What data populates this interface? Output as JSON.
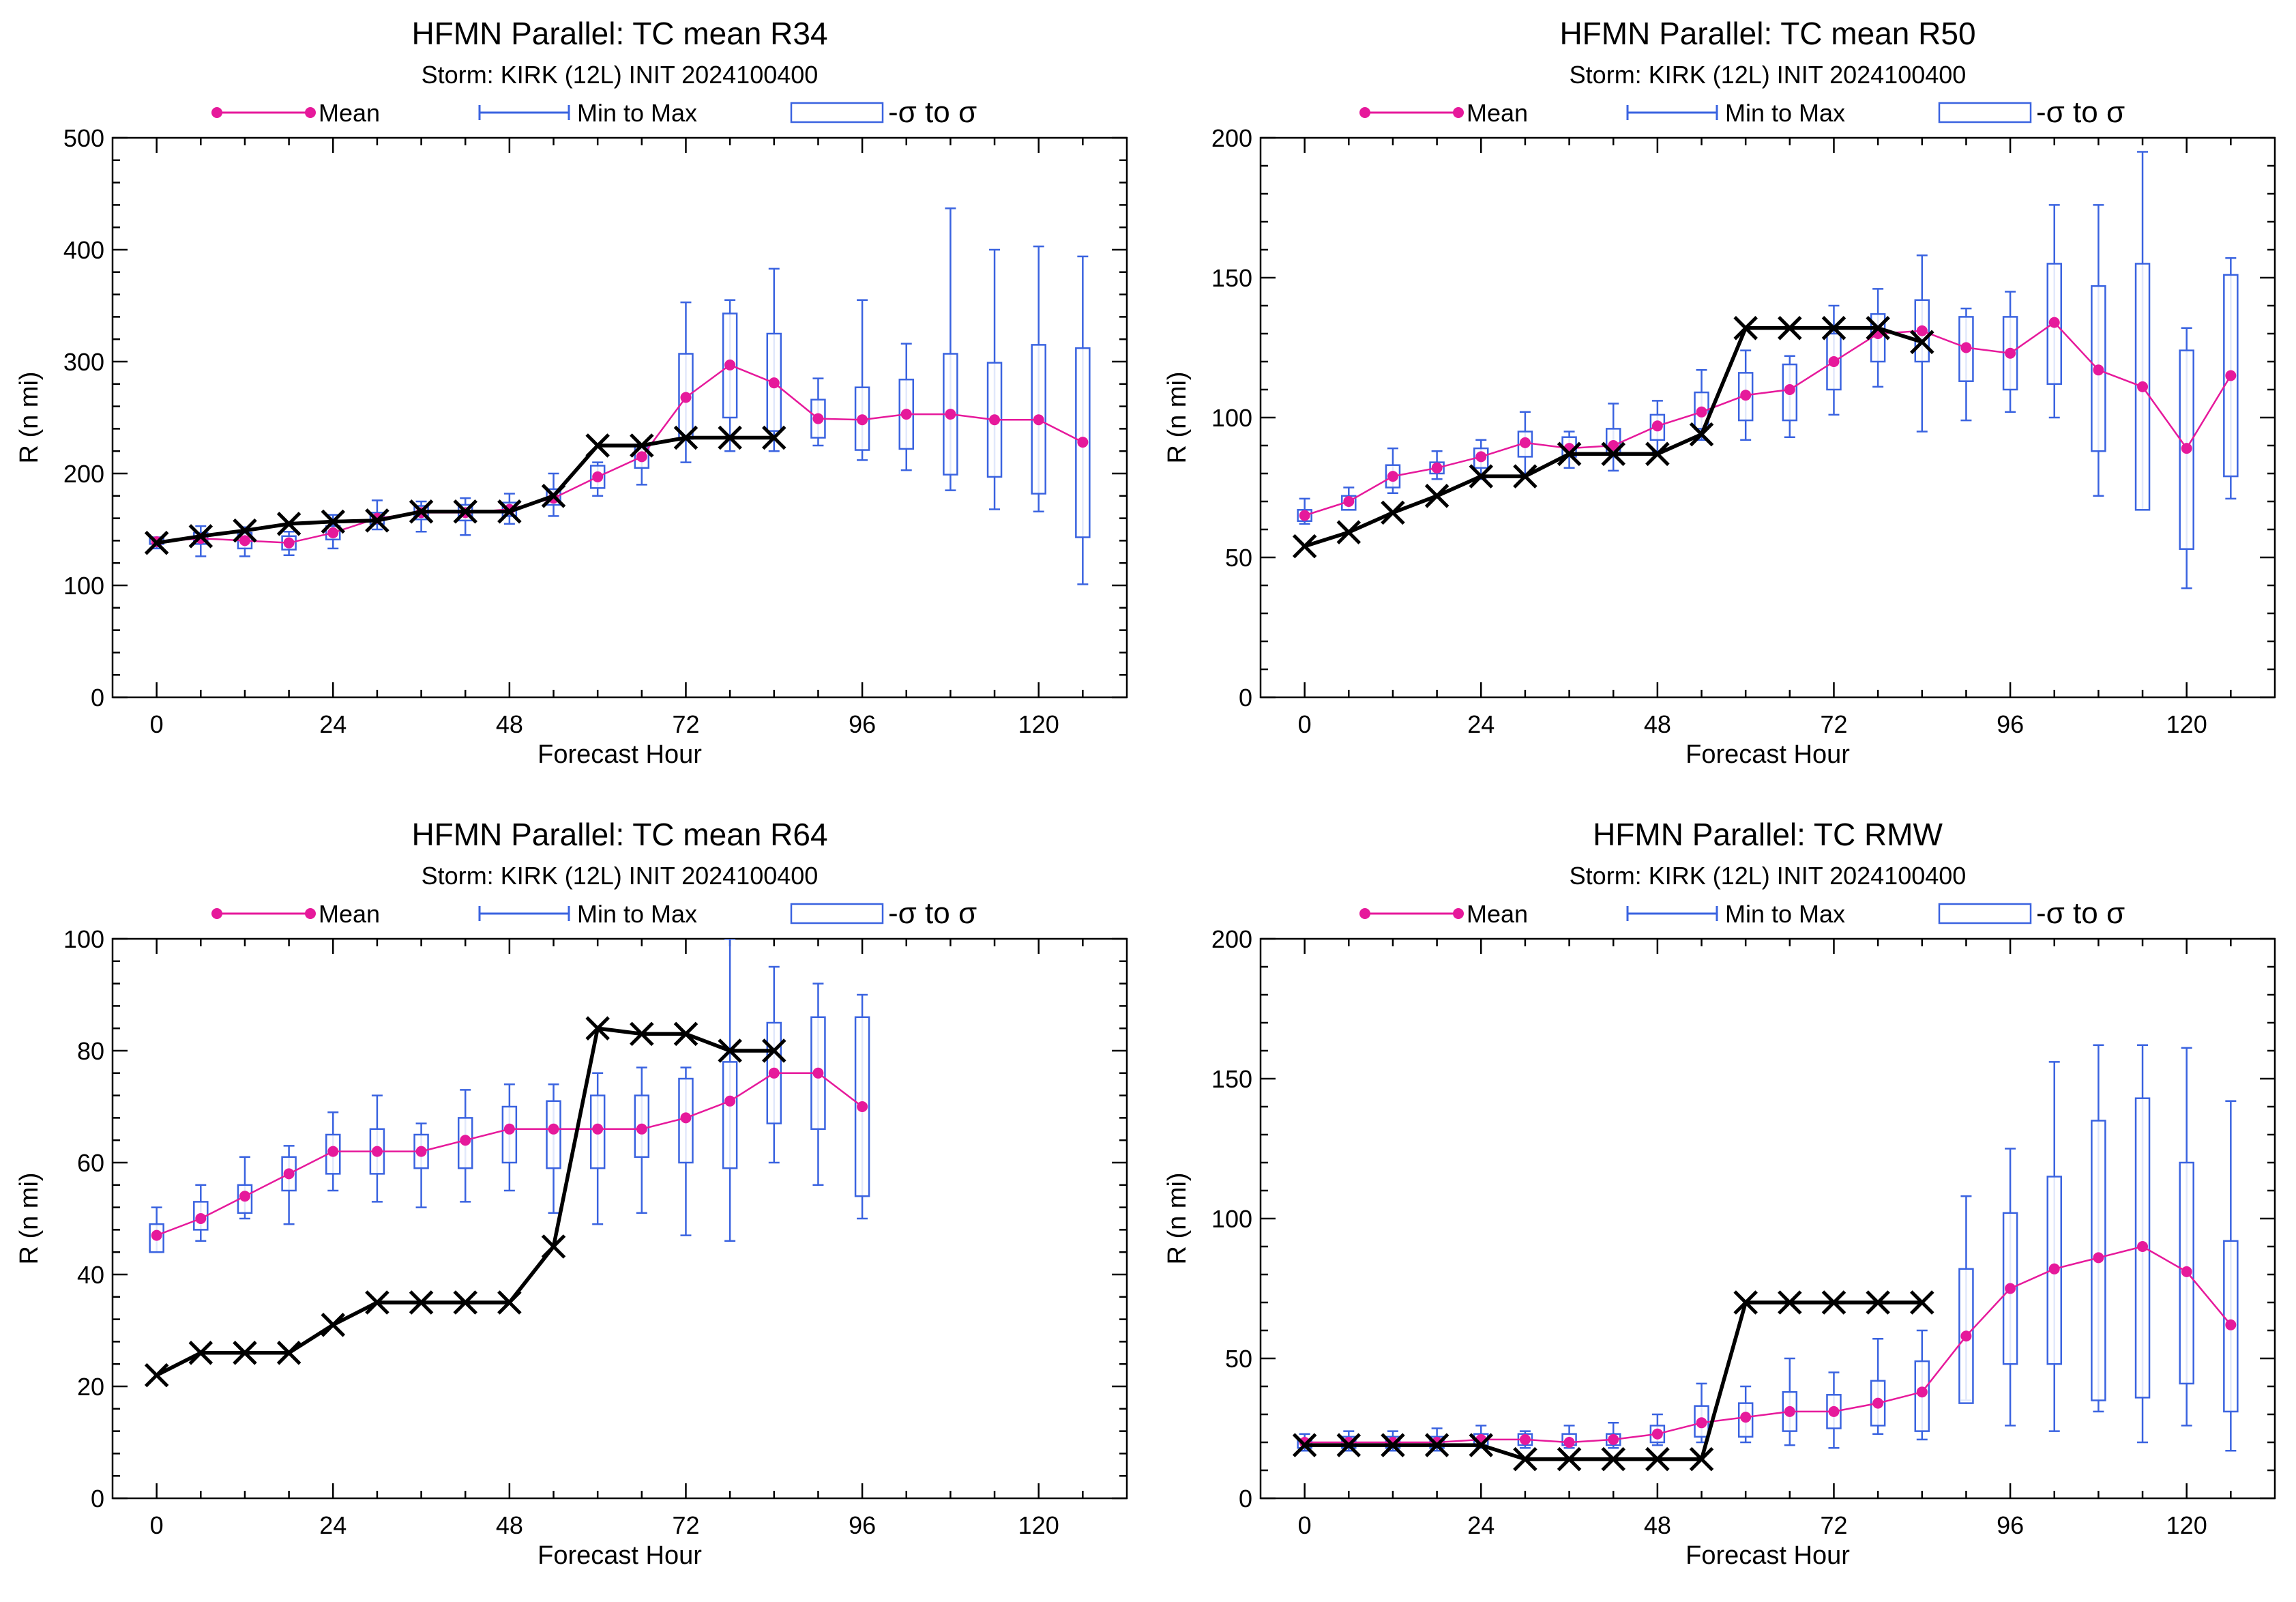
{
  "chart_data": [
    {
      "type": "line",
      "title": "HFMN Parallel: TC mean R34",
      "subtitle": "Storm: KIRK (12L) INIT 2024100400",
      "xlabel": "Forecast Hour",
      "ylabel": "R (n mi)",
      "xlim": [
        -6,
        132
      ],
      "ylim": [
        0,
        500
      ],
      "xticks": [
        0,
        24,
        48,
        72,
        96,
        120
      ],
      "yticks": [
        0,
        100,
        200,
        300,
        400,
        500
      ],
      "legend": [
        "Mean",
        "Min to Max",
        "-σ to σ"
      ],
      "legend_position": "top",
      "colors": {
        "mean": "#e6199b",
        "box": "#3a63e0",
        "observed": "#000000"
      },
      "series": [
        {
          "name": "Mean",
          "x": [
            0,
            6,
            12,
            18,
            24,
            30,
            36,
            42,
            48,
            54,
            60,
            66,
            72,
            78,
            84,
            90,
            96,
            102,
            108,
            114,
            120,
            126
          ],
          "values": [
            139,
            142,
            140,
            138,
            147,
            160,
            165,
            165,
            168,
            178,
            197,
            215,
            268,
            297,
            281,
            249,
            248,
            253,
            253,
            248,
            248,
            228
          ]
        },
        {
          "name": "Min to Max",
          "x": [
            0,
            6,
            12,
            18,
            24,
            30,
            36,
            42,
            48,
            54,
            60,
            66,
            72,
            78,
            84,
            90,
            96,
            102,
            108,
            114,
            120,
            126
          ],
          "min": [
            133,
            126,
            126,
            127,
            133,
            150,
            148,
            145,
            155,
            162,
            180,
            190,
            210,
            220,
            220,
            225,
            212,
            203,
            185,
            168,
            166,
            101
          ],
          "max": [
            143,
            153,
            152,
            148,
            163,
            176,
            175,
            178,
            182,
            200,
            210,
            225,
            353,
            355,
            383,
            285,
            355,
            316,
            437,
            400,
            403,
            394
          ]
        },
        {
          "name": "-σ to σ",
          "x": [
            0,
            6,
            12,
            18,
            24,
            30,
            36,
            42,
            48,
            54,
            60,
            66,
            72,
            78,
            84,
            90,
            96,
            102,
            108,
            114,
            120,
            126
          ],
          "low": [
            137,
            137,
            133,
            132,
            141,
            155,
            159,
            158,
            162,
            172,
            187,
            205,
            231,
            250,
            238,
            232,
            221,
            222,
            199,
            197,
            182,
            143
          ],
          "high": [
            142,
            147,
            147,
            144,
            153,
            165,
            171,
            172,
            174,
            186,
            207,
            224,
            307,
            343,
            325,
            266,
            277,
            284,
            307,
            299,
            315,
            312
          ]
        },
        {
          "x": [
            0,
            6,
            12,
            18,
            24,
            30,
            36,
            42,
            48,
            54,
            60,
            66,
            72,
            78,
            84
          ],
          "values": [
            138,
            144,
            149,
            155,
            157,
            158,
            166,
            166,
            166,
            180,
            225,
            225,
            232,
            232,
            232
          ]
        }
      ]
    },
    {
      "type": "line",
      "title": "HFMN Parallel: TC mean R50",
      "subtitle": "Storm: KIRK (12L) INIT 2024100400",
      "xlabel": "Forecast Hour",
      "ylabel": "R (n mi)",
      "xlim": [
        -6,
        132
      ],
      "ylim": [
        0,
        200
      ],
      "xticks": [
        0,
        24,
        48,
        72,
        96,
        120
      ],
      "yticks": [
        0,
        50,
        100,
        150,
        200
      ],
      "legend": [
        "Mean",
        "Min to Max",
        "-σ to σ"
      ],
      "legend_position": "top",
      "colors": {
        "mean": "#e6199b",
        "box": "#3a63e0",
        "observed": "#000000"
      },
      "series": [
        {
          "name": "Mean",
          "x": [
            0,
            6,
            12,
            18,
            24,
            30,
            36,
            42,
            48,
            54,
            60,
            66,
            72,
            78,
            84,
            90,
            96,
            102,
            108,
            114,
            120,
            126
          ],
          "values": [
            65,
            70,
            79,
            82,
            86,
            91,
            89,
            90,
            97,
            102,
            108,
            110,
            120,
            130,
            131,
            125,
            123,
            134,
            117,
            111,
            89,
            115
          ]
        },
        {
          "name": "Min to Max",
          "x": [
            0,
            6,
            12,
            18,
            24,
            30,
            36,
            42,
            48,
            54,
            60,
            66,
            72,
            78,
            84,
            90,
            96,
            102,
            108,
            114,
            120,
            126
          ],
          "min": [
            62,
            67,
            73,
            78,
            78,
            80,
            82,
            81,
            88,
            92,
            92,
            93,
            101,
            111,
            95,
            99,
            102,
            100,
            72,
            67,
            39,
            71
          ]
        },
        {
          "name": "-σ to σ",
          "x": [
            0,
            6,
            12,
            18,
            24,
            30,
            36,
            42,
            48,
            54,
            60,
            66,
            72,
            78,
            84,
            90,
            96,
            102,
            108,
            114,
            120,
            126
          ],
          "low": [
            63,
            67,
            75,
            80,
            82,
            86,
            86,
            87,
            92,
            96,
            99,
            99,
            110,
            120,
            120,
            113,
            110,
            112,
            88,
            67,
            53,
            79
          ],
          "high": [
            67,
            72,
            83,
            84,
            89,
            95,
            93,
            96,
            101,
            109,
            116,
            119,
            130,
            137,
            142,
            136,
            136,
            155,
            147,
            155,
            124,
            151
          ]
        },
        {
          "x": [
            0,
            6,
            12,
            18,
            24,
            30,
            36,
            42,
            48,
            54,
            60,
            66,
            72,
            78,
            84
          ],
          "values": [
            54,
            59,
            66,
            72,
            79,
            79,
            87,
            87,
            87,
            94,
            132,
            132,
            132,
            132,
            127
          ]
        }
      ],
      "_max": [
        71,
        75,
        89,
        88,
        92,
        102,
        95,
        105,
        106,
        117,
        124,
        122,
        140,
        146,
        158,
        139,
        145,
        176,
        176,
        195,
        132,
        157
      ]
    },
    {
      "type": "line",
      "title": "HFMN Parallel: TC mean R64",
      "subtitle": "Storm: KIRK (12L) INIT 2024100400",
      "xlabel": "Forecast Hour",
      "ylabel": "R (n mi)",
      "xlim": [
        -6,
        132
      ],
      "ylim": [
        0,
        100
      ],
      "xticks": [
        0,
        24,
        48,
        72,
        96,
        120
      ],
      "yticks": [
        0,
        20,
        40,
        60,
        80,
        100
      ],
      "legend": [
        "Mean",
        "Min to Max",
        "-σ to σ"
      ],
      "legend_position": "top",
      "colors": {
        "mean": "#e6199b",
        "box": "#3a63e0",
        "observed": "#000000"
      },
      "series": [
        {
          "name": "Mean",
          "x": [
            0,
            6,
            12,
            18,
            24,
            30,
            36,
            42,
            48,
            54,
            60,
            66,
            72,
            78,
            84,
            90,
            96
          ],
          "values": [
            47,
            50,
            54,
            58,
            62,
            62,
            62,
            64,
            66,
            66,
            66,
            66,
            68,
            71,
            76,
            76,
            70
          ]
        },
        {
          "name": "Min to Max",
          "x": [
            0,
            6,
            12,
            18,
            24,
            30,
            36,
            42,
            48,
            54,
            60,
            66,
            72,
            78,
            84,
            90,
            96
          ],
          "min": [
            44,
            46,
            50,
            49,
            55,
            53,
            52,
            53,
            55,
            51,
            49,
            51,
            47,
            46,
            60,
            56,
            50
          ],
          "max": [
            52,
            56,
            61,
            63,
            69,
            72,
            67,
            73,
            74,
            74,
            76,
            77,
            77,
            100,
            95,
            92,
            90
          ]
        },
        {
          "name": "-σ to σ",
          "x": [
            0,
            6,
            12,
            18,
            24,
            30,
            36,
            42,
            48,
            54,
            60,
            66,
            72,
            78,
            84,
            90,
            96
          ],
          "low": [
            44,
            48,
            51,
            55,
            58,
            58,
            59,
            59,
            60,
            59,
            59,
            61,
            60,
            59,
            67,
            66,
            54
          ],
          "high": [
            49,
            53,
            56,
            61,
            65,
            66,
            65,
            68,
            70,
            71,
            72,
            72,
            75,
            78,
            85,
            86,
            86
          ]
        },
        {
          "x": [
            0,
            6,
            12,
            18,
            24,
            30,
            36,
            42,
            48,
            54,
            60,
            66,
            72,
            78,
            84
          ],
          "values": [
            22,
            26,
            26,
            26,
            31,
            35,
            35,
            35,
            35,
            45,
            84,
            83,
            83,
            80,
            80
          ]
        }
      ]
    },
    {
      "type": "line",
      "title": "HFMN Parallel: TC RMW",
      "subtitle": "Storm: KIRK (12L) INIT 2024100400",
      "xlabel": "Forecast Hour",
      "ylabel": "R (n mi)",
      "xlim": [
        -6,
        132
      ],
      "ylim": [
        0,
        200
      ],
      "xticks": [
        0,
        24,
        48,
        72,
        96,
        120
      ],
      "yticks": [
        0,
        50,
        100,
        150,
        200
      ],
      "legend": [
        "Mean",
        "Min to Max",
        "-σ to σ"
      ],
      "legend_position": "top",
      "colors": {
        "mean": "#e6199b",
        "box": "#3a63e0",
        "observed": "#000000"
      },
      "series": [
        {
          "name": "Mean",
          "x": [
            0,
            6,
            12,
            18,
            24,
            30,
            36,
            42,
            48,
            54,
            60,
            66,
            72,
            78,
            84,
            90,
            96,
            102,
            108,
            114,
            120,
            126
          ],
          "values": [
            20,
            20,
            20,
            20,
            21,
            21,
            20,
            21,
            23,
            27,
            29,
            31,
            31,
            34,
            38,
            58,
            75,
            82,
            86,
            90,
            81,
            62
          ]
        },
        {
          "name": "Min to Max",
          "x": [
            0,
            6,
            12,
            18,
            24,
            30,
            36,
            42,
            48,
            54,
            60,
            66,
            72,
            78,
            84,
            90,
            96,
            102,
            108,
            114,
            120,
            126
          ],
          "min": [
            17,
            17,
            17,
            17,
            18,
            18,
            18,
            18,
            19,
            20,
            20,
            19,
            18,
            23,
            21,
            35,
            26,
            24,
            31,
            20,
            26,
            17
          ],
          "max": [
            23,
            24,
            24,
            25,
            26,
            24,
            26,
            27,
            30,
            41,
            40,
            50,
            45,
            57,
            60,
            108,
            125,
            156,
            162,
            162,
            161,
            142
          ]
        },
        {
          "name": "-σ to σ",
          "x": [
            0,
            6,
            12,
            18,
            24,
            30,
            36,
            42,
            48,
            54,
            60,
            66,
            72,
            78,
            84,
            90,
            96,
            102,
            108,
            114,
            120,
            126
          ],
          "low": [
            18,
            18,
            18,
            18,
            19,
            19,
            19,
            19,
            20,
            22,
            22,
            24,
            25,
            26,
            24,
            34,
            48,
            48,
            35,
            36,
            41,
            31
          ],
          "high": [
            21,
            22,
            22,
            22,
            23,
            23,
            23,
            23,
            26,
            33,
            34,
            38,
            37,
            42,
            49,
            82,
            102,
            115,
            135,
            143,
            120,
            92
          ]
        },
        {
          "x": [
            0,
            6,
            12,
            18,
            24,
            30,
            36,
            42,
            48,
            54,
            60,
            66,
            72,
            78,
            84
          ],
          "values": [
            19,
            19,
            19,
            19,
            19,
            14,
            14,
            14,
            14,
            14,
            70,
            70,
            70,
            70,
            70
          ]
        }
      ]
    }
  ]
}
